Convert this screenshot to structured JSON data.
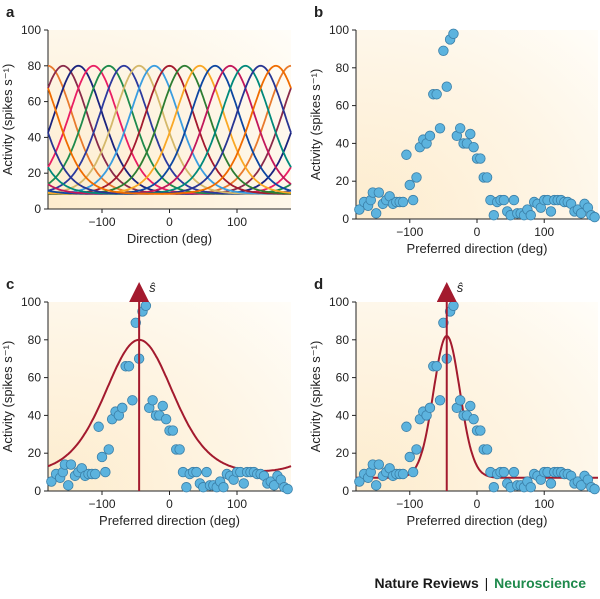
{
  "footer": {
    "journal": "Nature Reviews",
    "separator": "|",
    "section": "Neuroscience"
  },
  "colors": {
    "dot_fill": "#5cb3de",
    "dot_stroke": "#3a7fa8",
    "fit_line": "#a31a2e",
    "estimate_arrow": "#a31a2e",
    "panel_bg_light": "#fffdf8",
    "panel_bg_warm": "#fdeccd"
  },
  "panels": [
    {
      "letter": "a",
      "xlabel": "Direction (deg)",
      "ylabel": "Activity (spikes s⁻¹)"
    },
    {
      "letter": "b",
      "xlabel": "Preferred direction (deg)",
      "ylabel": "Activity (spikes s⁻¹)"
    },
    {
      "letter": "c",
      "xlabel": "Preferred direction (deg)",
      "ylabel": "Activity (spikes s⁻¹)",
      "estimate_label": "ŝ"
    },
    {
      "letter": "d",
      "xlabel": "Preferred direction (deg)",
      "ylabel": "Activity (spikes s⁻¹)",
      "estimate_label": "ŝ"
    }
  ],
  "chart_data": [
    {
      "type": "line",
      "panel": "a",
      "title": "",
      "xlabel": "Direction (deg)",
      "ylabel": "Activity (spikes s⁻¹)",
      "xlim": [
        -180,
        180
      ],
      "ylim": [
        0,
        100
      ],
      "xticks": [
        -100,
        0,
        100
      ],
      "yticks": [
        0,
        20,
        40,
        60,
        80,
        100
      ],
      "grid": false,
      "legend": "none",
      "series_model": {
        "shape": "von Mises tuning curve",
        "baseline": 8,
        "peak": 80,
        "width_k": 2.5
      },
      "series": [
        {
          "preferred": -180,
          "color": "#e87a2d"
        },
        {
          "preferred": -157.5,
          "color": "#8a2a4a"
        },
        {
          "preferred": -135,
          "color": "#1a237e"
        },
        {
          "preferred": -112.5,
          "color": "#e91e63"
        },
        {
          "preferred": -90,
          "color": "#1e8a4c"
        },
        {
          "preferred": -67.5,
          "color": "#2d3a9e"
        },
        {
          "preferred": -45,
          "color": "#d4b86a"
        },
        {
          "preferred": -22.5,
          "color": "#3a9de0"
        },
        {
          "preferred": 0,
          "color": "#a31a2e"
        },
        {
          "preferred": 22.5,
          "color": "#2e7d32"
        },
        {
          "preferred": 45,
          "color": "#f9a825"
        },
        {
          "preferred": 67.5,
          "color": "#0d47a1"
        },
        {
          "preferred": 90,
          "color": "#c2185b"
        },
        {
          "preferred": 112.5,
          "color": "#00897b"
        },
        {
          "preferred": 135,
          "color": "#283593"
        },
        {
          "preferred": 157.5,
          "color": "#ef6c00"
        }
      ]
    },
    {
      "type": "scatter",
      "panel": "b",
      "title": "",
      "xlabel": "Preferred direction (deg)",
      "ylabel": "Activity (spikes s⁻¹)",
      "xlim": [
        -180,
        180
      ],
      "ylim": [
        0,
        100
      ],
      "xticks": [
        -100,
        0,
        100
      ],
      "yticks": [
        0,
        20,
        40,
        60,
        80,
        100
      ],
      "grid": false,
      "x": [
        -175,
        -168,
        -162,
        -158,
        -155,
        -150,
        -146,
        -140,
        -135,
        -130,
        -125,
        -120,
        -115,
        -110,
        -105,
        -100,
        -95,
        -90,
        -85,
        -80,
        -75,
        -70,
        -65,
        -60,
        -55,
        -50,
        -45,
        -40,
        -35,
        -30,
        -25,
        -20,
        -15,
        -10,
        -5,
        0,
        5,
        10,
        15,
        20,
        25,
        30,
        35,
        40,
        45,
        50,
        55,
        60,
        65,
        70,
        75,
        80,
        85,
        90,
        95,
        100,
        105,
        110,
        115,
        120,
        125,
        130,
        135,
        140,
        145,
        150,
        155,
        160,
        165,
        170,
        175
      ],
      "y": [
        5,
        9,
        7,
        10,
        14,
        3,
        14,
        8,
        10,
        12,
        8,
        9,
        9,
        9,
        34,
        18,
        10,
        22,
        38,
        42,
        40,
        44,
        66,
        66,
        48,
        89,
        70,
        95,
        98,
        44,
        48,
        40,
        40,
        45,
        38,
        32,
        32,
        22,
        22,
        10,
        2,
        9,
        10,
        10,
        4,
        2,
        10,
        3,
        3,
        2,
        5,
        2,
        9,
        8,
        6,
        10,
        10,
        4,
        10,
        10,
        10,
        9,
        9,
        8,
        4,
        5,
        3,
        8,
        6,
        2,
        1
      ]
    },
    {
      "type": "scatter",
      "panel": "c",
      "title": "",
      "xlabel": "Preferred direction (deg)",
      "ylabel": "Activity (spikes s⁻¹)",
      "xlim": [
        -180,
        180
      ],
      "ylim": [
        0,
        100
      ],
      "xticks": [
        -100,
        0,
        100
      ],
      "yticks": [
        0,
        20,
        40,
        60,
        80,
        100
      ],
      "grid": false,
      "x": [
        -175,
        -168,
        -162,
        -158,
        -155,
        -150,
        -146,
        -140,
        -135,
        -130,
        -125,
        -120,
        -115,
        -110,
        -105,
        -100,
        -95,
        -90,
        -85,
        -80,
        -75,
        -70,
        -65,
        -60,
        -55,
        -50,
        -45,
        -40,
        -35,
        -30,
        -25,
        -20,
        -15,
        -10,
        -5,
        0,
        5,
        10,
        15,
        20,
        25,
        30,
        35,
        40,
        45,
        50,
        55,
        60,
        65,
        70,
        75,
        80,
        85,
        90,
        95,
        100,
        105,
        110,
        115,
        120,
        125,
        130,
        135,
        140,
        145,
        150,
        155,
        160,
        165,
        170,
        175
      ],
      "y": [
        5,
        9,
        7,
        10,
        14,
        3,
        14,
        8,
        10,
        12,
        8,
        9,
        9,
        9,
        34,
        18,
        10,
        22,
        38,
        42,
        40,
        44,
        66,
        66,
        48,
        89,
        70,
        95,
        98,
        44,
        48,
        40,
        40,
        45,
        38,
        32,
        32,
        22,
        22,
        10,
        2,
        9,
        10,
        10,
        4,
        2,
        10,
        3,
        3,
        2,
        5,
        2,
        9,
        8,
        6,
        10,
        10,
        4,
        10,
        10,
        10,
        9,
        9,
        8,
        4,
        5,
        3,
        8,
        6,
        2,
        1
      ],
      "fit": {
        "shape": "von Mises",
        "center": -45,
        "baseline": 5,
        "amplitude": 75,
        "width_k": 1.3
      },
      "estimate": -45
    },
    {
      "type": "scatter",
      "panel": "d",
      "title": "",
      "xlabel": "Preferred direction (deg)",
      "ylabel": "Activity (spikes s⁻¹)",
      "xlim": [
        -180,
        180
      ],
      "ylim": [
        0,
        100
      ],
      "xticks": [
        -100,
        0,
        100
      ],
      "yticks": [
        0,
        20,
        40,
        60,
        80,
        100
      ],
      "grid": false,
      "x": [
        -175,
        -168,
        -162,
        -158,
        -155,
        -150,
        -146,
        -140,
        -135,
        -130,
        -125,
        -120,
        -115,
        -110,
        -105,
        -100,
        -95,
        -90,
        -85,
        -80,
        -75,
        -70,
        -65,
        -60,
        -55,
        -50,
        -45,
        -40,
        -35,
        -30,
        -25,
        -20,
        -15,
        -10,
        -5,
        0,
        5,
        10,
        15,
        20,
        25,
        30,
        35,
        40,
        45,
        50,
        55,
        60,
        65,
        70,
        75,
        80,
        85,
        90,
        95,
        100,
        105,
        110,
        115,
        120,
        125,
        130,
        135,
        140,
        145,
        150,
        155,
        160,
        165,
        170,
        175
      ],
      "y": [
        5,
        9,
        7,
        10,
        14,
        3,
        14,
        8,
        10,
        12,
        8,
        9,
        9,
        9,
        34,
        18,
        10,
        22,
        38,
        42,
        40,
        44,
        66,
        66,
        48,
        89,
        70,
        95,
        98,
        44,
        48,
        40,
        40,
        45,
        38,
        32,
        32,
        22,
        22,
        10,
        2,
        9,
        10,
        10,
        4,
        2,
        10,
        3,
        3,
        2,
        5,
        2,
        9,
        8,
        6,
        10,
        10,
        4,
        10,
        10,
        10,
        9,
        9,
        8,
        4,
        5,
        3,
        8,
        6,
        2,
        1
      ],
      "fit": {
        "shape": "von Mises",
        "center": -45,
        "baseline": 7,
        "amplitude": 75,
        "width_k": 8.5
      },
      "estimate": -45
    }
  ]
}
